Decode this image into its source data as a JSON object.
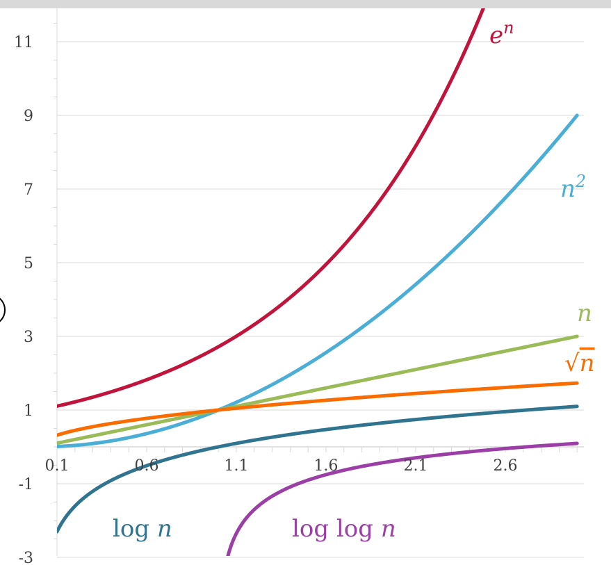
{
  "chart_data": {
    "type": "line",
    "x_ticks": [
      "0.1",
      "0.6",
      "1.1",
      "1.6",
      "2.1",
      "2.6"
    ],
    "y_ticks": [
      "-3",
      "-1",
      "1",
      "3",
      "5",
      "7",
      "9",
      "11"
    ],
    "xlim": [
      0.1,
      3.0
    ],
    "ylim": [
      -3,
      12
    ],
    "grid": "horizontal",
    "series": [
      {
        "name": "e^n",
        "function": "exp",
        "color": "#c0143c",
        "label": "e",
        "label_sup": "n"
      },
      {
        "name": "n^2",
        "function": "square",
        "color": "#4aaed6",
        "label": "n",
        "label_sup": "2"
      },
      {
        "name": "n",
        "function": "identity",
        "color": "#9bbb59",
        "label": "n",
        "label_sup": ""
      },
      {
        "name": "sqrt(n)",
        "function": "sqrt",
        "color": "#f96d00",
        "label": "√n",
        "label_sup": ""
      },
      {
        "name": "log n",
        "function": "log",
        "color": "#31748f",
        "label": "log n",
        "label_sup": ""
      },
      {
        "name": "log log n",
        "function": "loglog",
        "color": "#9b3fa6",
        "label": "log log n",
        "label_sup": ""
      }
    ]
  },
  "colors": {
    "axis_text": "#404040",
    "gridline": "#d9d9d9",
    "topbar": "#d9d9d9"
  }
}
